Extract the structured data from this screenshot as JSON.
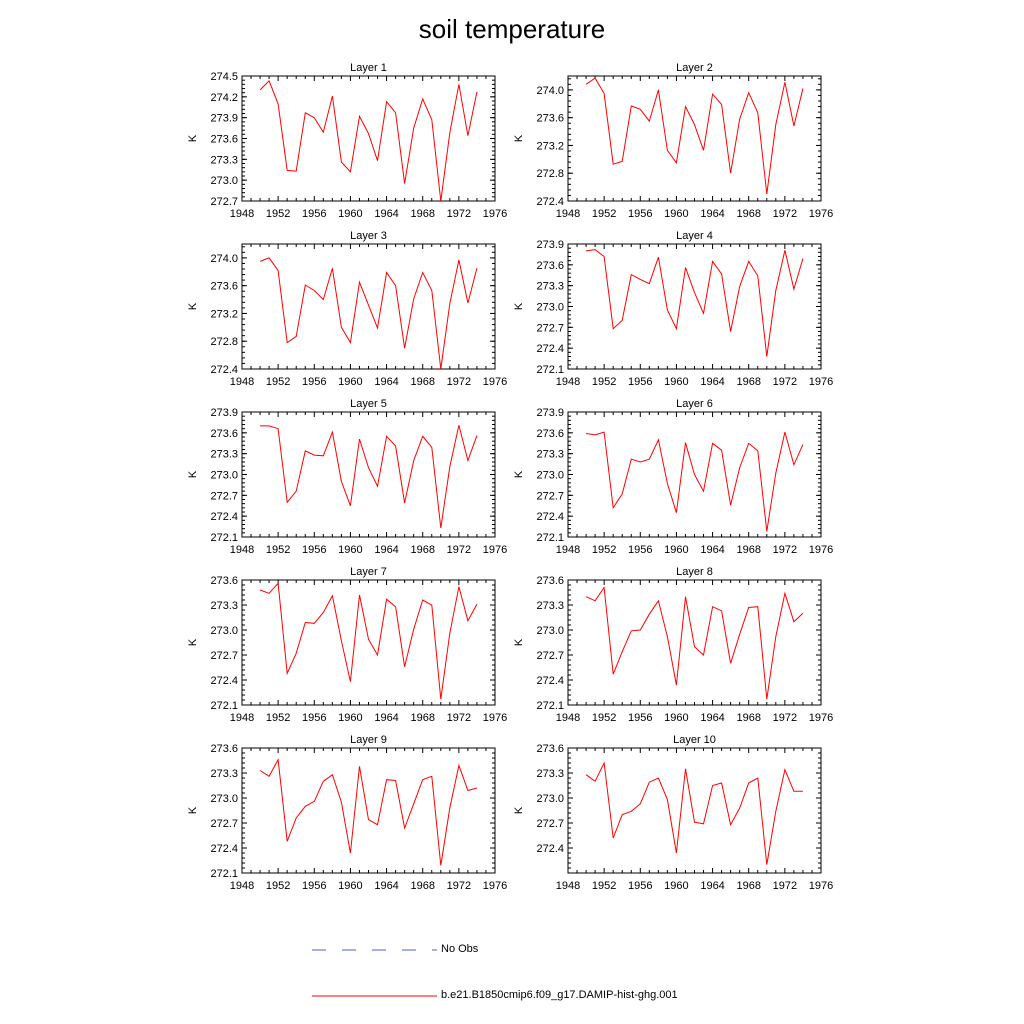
{
  "title": "soil temperature",
  "colors": {
    "model": "#ff0000",
    "obs": "#4f5bd5",
    "axis": "#000000"
  },
  "legend": [
    {
      "label": "No Obs",
      "style": "dashed",
      "color": "#4f5bd5"
    },
    {
      "label": "b.e21.B1850cmip6.f09_g17.DAMIP-hist-ghg.001",
      "style": "solid",
      "color": "#ff0000"
    }
  ],
  "chart_data": [
    {
      "type": "line",
      "title": "Layer 1",
      "ylabel": "K",
      "xlim": [
        1948,
        1976
      ],
      "xticks": [
        1948,
        1952,
        1956,
        1960,
        1964,
        1968,
        1972,
        1976
      ],
      "ylim": [
        272.7,
        274.5
      ],
      "yticks": [
        "274.5",
        "274.2",
        "273.9",
        "273.6",
        "273.3",
        "273.0",
        "272.7"
      ],
      "series": [
        {
          "x": [
            1950,
            1951,
            1952,
            1953,
            1954,
            1955,
            1956,
            1957,
            1958,
            1959,
            1960,
            1961,
            1962,
            1963,
            1964,
            1965,
            1966,
            1967,
            1968,
            1969,
            1970,
            1971,
            1972,
            1973,
            1974
          ],
          "values": [
            274.3,
            274.43,
            274.1,
            273.14,
            273.13,
            273.97,
            273.9,
            273.69,
            274.21,
            273.26,
            273.12,
            273.92,
            273.67,
            273.28,
            274.13,
            273.97,
            272.95,
            273.75,
            274.17,
            273.87,
            272.7,
            273.68,
            274.38,
            273.64,
            274.27
          ]
        }
      ]
    },
    {
      "type": "line",
      "title": "Layer 2",
      "ylabel": "K",
      "xlim": [
        1948,
        1976
      ],
      "xticks": [
        1948,
        1952,
        1956,
        1960,
        1964,
        1968,
        1972,
        1976
      ],
      "ylim": [
        272.4,
        274.2
      ],
      "yticks": [
        "274.0",
        "273.6",
        "273.2",
        "272.8",
        "272.4"
      ],
      "series": [
        {
          "x": [
            1950,
            1951,
            1952,
            1953,
            1954,
            1955,
            1956,
            1957,
            1958,
            1959,
            1960,
            1961,
            1962,
            1963,
            1964,
            1965,
            1966,
            1967,
            1968,
            1969,
            1970,
            1971,
            1972,
            1973,
            1974
          ],
          "values": [
            274.08,
            274.17,
            273.95,
            272.93,
            272.97,
            273.77,
            273.72,
            273.55,
            274.0,
            273.13,
            272.95,
            273.76,
            273.5,
            273.13,
            273.94,
            273.79,
            272.8,
            273.58,
            273.96,
            273.67,
            272.5,
            273.5,
            274.11,
            273.48,
            274.02
          ]
        }
      ]
    },
    {
      "type": "line",
      "title": "Layer 3",
      "ylabel": "K",
      "xlim": [
        1948,
        1976
      ],
      "xticks": [
        1948,
        1952,
        1956,
        1960,
        1964,
        1968,
        1972,
        1976
      ],
      "ylim": [
        272.4,
        274.2
      ],
      "yticks": [
        "274.0",
        "273.6",
        "273.2",
        "272.8",
        "272.4"
      ],
      "series": [
        {
          "x": [
            1950,
            1951,
            1952,
            1953,
            1954,
            1955,
            1956,
            1957,
            1958,
            1959,
            1960,
            1961,
            1962,
            1963,
            1964,
            1965,
            1966,
            1967,
            1968,
            1969,
            1970,
            1971,
            1972,
            1973,
            1974
          ],
          "values": [
            273.95,
            274.0,
            273.82,
            272.78,
            272.87,
            273.61,
            273.53,
            273.4,
            273.85,
            273.0,
            272.78,
            273.65,
            273.32,
            272.99,
            273.79,
            273.6,
            272.7,
            273.41,
            273.79,
            273.53,
            272.4,
            273.34,
            273.97,
            273.35,
            273.85
          ]
        }
      ]
    },
    {
      "type": "line",
      "title": "Layer 4",
      "ylabel": "K",
      "xlim": [
        1948,
        1976
      ],
      "xticks": [
        1948,
        1952,
        1956,
        1960,
        1964,
        1968,
        1972,
        1976
      ],
      "ylim": [
        272.1,
        273.9
      ],
      "yticks": [
        "273.9",
        "273.6",
        "273.3",
        "273.0",
        "272.7",
        "272.4",
        "272.1"
      ],
      "series": [
        {
          "x": [
            1950,
            1951,
            1952,
            1953,
            1954,
            1955,
            1956,
            1957,
            1958,
            1959,
            1960,
            1961,
            1962,
            1963,
            1964,
            1965,
            1966,
            1967,
            1968,
            1969,
            1970,
            1971,
            1972,
            1973,
            1974
          ],
          "values": [
            273.8,
            273.82,
            273.72,
            272.68,
            272.8,
            273.46,
            273.39,
            273.33,
            273.71,
            272.95,
            272.68,
            273.56,
            273.2,
            272.9,
            273.65,
            273.47,
            272.64,
            273.29,
            273.65,
            273.44,
            272.28,
            273.23,
            273.81,
            273.25,
            273.69
          ]
        }
      ]
    },
    {
      "type": "line",
      "title": "Layer 5",
      "ylabel": "K",
      "xlim": [
        1948,
        1976
      ],
      "xticks": [
        1948,
        1952,
        1956,
        1960,
        1964,
        1968,
        1972,
        1976
      ],
      "ylim": [
        272.1,
        273.9
      ],
      "yticks": [
        "273.9",
        "273.6",
        "273.3",
        "273.0",
        "272.7",
        "272.4",
        "272.1"
      ],
      "series": [
        {
          "x": [
            1950,
            1951,
            1952,
            1953,
            1954,
            1955,
            1956,
            1957,
            1958,
            1959,
            1960,
            1961,
            1962,
            1963,
            1964,
            1965,
            1966,
            1967,
            1968,
            1969,
            1970,
            1971,
            1972,
            1973,
            1974
          ],
          "values": [
            273.7,
            273.7,
            273.66,
            272.6,
            272.76,
            273.34,
            273.28,
            273.27,
            273.61,
            272.9,
            272.55,
            273.51,
            273.1,
            272.83,
            273.55,
            273.41,
            272.59,
            273.2,
            273.55,
            273.39,
            272.23,
            273.11,
            273.71,
            273.2,
            273.56
          ]
        }
      ]
    },
    {
      "type": "line",
      "title": "Layer 6",
      "ylabel": "K",
      "xlim": [
        1948,
        1976
      ],
      "xticks": [
        1948,
        1952,
        1956,
        1960,
        1964,
        1968,
        1972,
        1976
      ],
      "ylim": [
        272.1,
        273.9
      ],
      "yticks": [
        "273.9",
        "273.6",
        "273.3",
        "273.0",
        "272.7",
        "272.4",
        "272.1"
      ],
      "series": [
        {
          "x": [
            1950,
            1951,
            1952,
            1953,
            1954,
            1955,
            1956,
            1957,
            1958,
            1959,
            1960,
            1961,
            1962,
            1963,
            1964,
            1965,
            1966,
            1967,
            1968,
            1969,
            1970,
            1971,
            1972,
            1973,
            1974
          ],
          "values": [
            273.59,
            273.57,
            273.61,
            272.52,
            272.72,
            273.22,
            273.18,
            273.22,
            273.5,
            272.87,
            272.45,
            273.46,
            273.0,
            272.76,
            273.45,
            273.35,
            272.56,
            273.1,
            273.45,
            273.34,
            272.18,
            273.02,
            273.61,
            273.14,
            273.43
          ]
        }
      ]
    },
    {
      "type": "line",
      "title": "Layer 7",
      "ylabel": "K",
      "xlim": [
        1948,
        1976
      ],
      "xticks": [
        1948,
        1952,
        1956,
        1960,
        1964,
        1968,
        1972,
        1976
      ],
      "ylim": [
        272.1,
        273.6
      ],
      "yticks": [
        "273.6",
        "273.3",
        "273.0",
        "272.7",
        "272.4",
        "272.1"
      ],
      "series": [
        {
          "x": [
            1950,
            1951,
            1952,
            1953,
            1954,
            1955,
            1956,
            1957,
            1958,
            1959,
            1960,
            1961,
            1962,
            1963,
            1964,
            1965,
            1966,
            1967,
            1968,
            1969,
            1970,
            1971,
            1972,
            1973,
            1974
          ],
          "values": [
            273.48,
            273.44,
            273.56,
            272.48,
            272.72,
            273.09,
            273.08,
            273.21,
            273.41,
            272.87,
            272.38,
            273.42,
            272.89,
            272.7,
            273.37,
            273.28,
            272.56,
            273.01,
            273.36,
            273.3,
            272.17,
            272.96,
            273.52,
            273.11,
            273.31
          ]
        }
      ]
    },
    {
      "type": "line",
      "title": "Layer 8",
      "ylabel": "K",
      "xlim": [
        1948,
        1976
      ],
      "xticks": [
        1948,
        1952,
        1956,
        1960,
        1964,
        1968,
        1972,
        1976
      ],
      "ylim": [
        272.1,
        273.6
      ],
      "yticks": [
        "273.6",
        "273.3",
        "273.0",
        "272.7",
        "272.4",
        "272.1"
      ],
      "series": [
        {
          "x": [
            1950,
            1951,
            1952,
            1953,
            1954,
            1955,
            1956,
            1957,
            1958,
            1959,
            1960,
            1961,
            1962,
            1963,
            1964,
            1965,
            1966,
            1967,
            1968,
            1969,
            1970,
            1971,
            1972,
            1973,
            1974
          ],
          "values": [
            273.4,
            273.35,
            273.51,
            272.47,
            272.74,
            272.99,
            273.0,
            273.19,
            273.35,
            272.92,
            272.34,
            273.4,
            272.8,
            272.7,
            273.28,
            273.23,
            272.6,
            272.95,
            273.27,
            273.28,
            272.17,
            272.92,
            273.44,
            273.1,
            273.2
          ]
        }
      ]
    },
    {
      "type": "line",
      "title": "Layer 9",
      "ylabel": "K",
      "xlim": [
        1948,
        1976
      ],
      "xticks": [
        1948,
        1952,
        1956,
        1960,
        1964,
        1968,
        1972,
        1976
      ],
      "ylim": [
        272.1,
        273.6
      ],
      "yticks": [
        "273.6",
        "273.3",
        "273.0",
        "272.7",
        "272.4",
        "272.1"
      ],
      "series": [
        {
          "x": [
            1950,
            1951,
            1952,
            1953,
            1954,
            1955,
            1956,
            1957,
            1958,
            1959,
            1960,
            1961,
            1962,
            1963,
            1964,
            1965,
            1966,
            1967,
            1968,
            1969,
            1970,
            1971,
            1972,
            1973,
            1974
          ],
          "values": [
            273.33,
            273.26,
            273.46,
            272.48,
            272.76,
            272.9,
            272.96,
            273.2,
            273.28,
            272.95,
            272.34,
            273.38,
            272.74,
            272.68,
            273.22,
            273.21,
            272.64,
            272.93,
            273.22,
            273.26,
            272.19,
            272.88,
            273.39,
            273.09,
            273.12
          ]
        }
      ]
    },
    {
      "type": "line",
      "title": "Layer 10",
      "ylabel": "K",
      "xlim": [
        1948,
        1976
      ],
      "xticks": [
        1948,
        1952,
        1956,
        1960,
        1964,
        1968,
        1972,
        1976
      ],
      "ylim": [
        272.1,
        273.6
      ],
      "yticks": [
        "273.6",
        "273.3",
        "273.0",
        "272.7",
        "272.4"
      ],
      "series": [
        {
          "x": [
            1950,
            1951,
            1952,
            1953,
            1954,
            1955,
            1956,
            1957,
            1958,
            1959,
            1960,
            1961,
            1962,
            1963,
            1964,
            1965,
            1966,
            1967,
            1968,
            1969,
            1970,
            1971,
            1972,
            1973,
            1974
          ],
          "values": [
            273.28,
            273.2,
            273.42,
            272.52,
            272.8,
            272.84,
            272.93,
            273.19,
            273.24,
            272.98,
            272.34,
            273.35,
            272.71,
            272.69,
            273.15,
            273.18,
            272.68,
            272.88,
            273.18,
            273.24,
            272.2,
            272.84,
            273.34,
            273.08,
            273.08
          ]
        }
      ]
    }
  ]
}
